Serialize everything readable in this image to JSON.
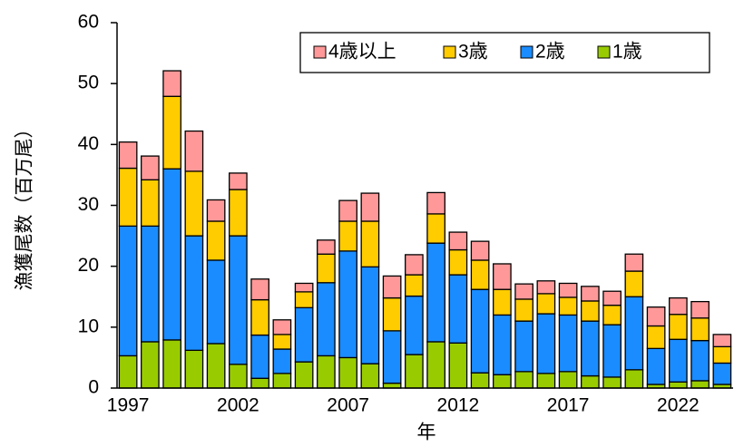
{
  "chart_data": {
    "type": "bar",
    "stacked": true,
    "y_label": "漁獲尾数（百万尾）",
    "x_label": "年",
    "categories": [
      "1997",
      null,
      null,
      null,
      null,
      "2002",
      null,
      null,
      null,
      null,
      "2007",
      null,
      null,
      null,
      null,
      "2012",
      null,
      null,
      null,
      null,
      "2017",
      null,
      null,
      null,
      null,
      "2022",
      null,
      null
    ],
    "series": [
      {
        "name": "1歳",
        "color": "#99cc00",
        "values": [
          5.3,
          7.6,
          7.9,
          6.2,
          7.3,
          3.9,
          1.6,
          2.4,
          4.3,
          5.3,
          5.0,
          4.0,
          0.8,
          5.5,
          7.6,
          7.4,
          2.5,
          2.2,
          2.7,
          2.4,
          2.7,
          2.0,
          1.8,
          3.0,
          0.6,
          1.0,
          1.2,
          0.6
        ]
      },
      {
        "name": "2歳",
        "color": "#1a8cff",
        "values": [
          21.3,
          19.0,
          28.1,
          18.8,
          13.7,
          21.1,
          7.1,
          4.0,
          8.9,
          12.0,
          17.5,
          15.9,
          8.6,
          9.6,
          16.2,
          11.2,
          13.7,
          9.8,
          8.3,
          9.8,
          9.3,
          9.0,
          8.6,
          12.0,
          5.9,
          7.0,
          6.6,
          3.5
        ]
      },
      {
        "name": "3歳",
        "color": "#ffcc00",
        "values": [
          9.5,
          7.6,
          11.9,
          10.6,
          6.4,
          7.6,
          5.8,
          2.4,
          2.6,
          4.7,
          4.9,
          7.5,
          5.4,
          3.5,
          4.8,
          4.1,
          4.8,
          4.2,
          3.6,
          3.3,
          2.9,
          3.3,
          3.2,
          4.2,
          3.7,
          4.1,
          3.7,
          2.7
        ]
      },
      {
        "name": "4歳以上",
        "color": "#ff9999",
        "values": [
          4.3,
          3.9,
          4.2,
          6.6,
          3.5,
          2.7,
          3.4,
          2.4,
          1.4,
          2.3,
          3.4,
          4.6,
          3.6,
          3.3,
          3.5,
          2.9,
          3.1,
          4.2,
          2.5,
          2.1,
          2.3,
          2.4,
          2.3,
          2.8,
          3.1,
          2.7,
          2.7,
          2.0
        ]
      }
    ],
    "ylim": [
      0,
      60
    ],
    "yticks": [
      0,
      10,
      20,
      30,
      40,
      50,
      60
    ],
    "grid": false,
    "legend": "top-right"
  }
}
